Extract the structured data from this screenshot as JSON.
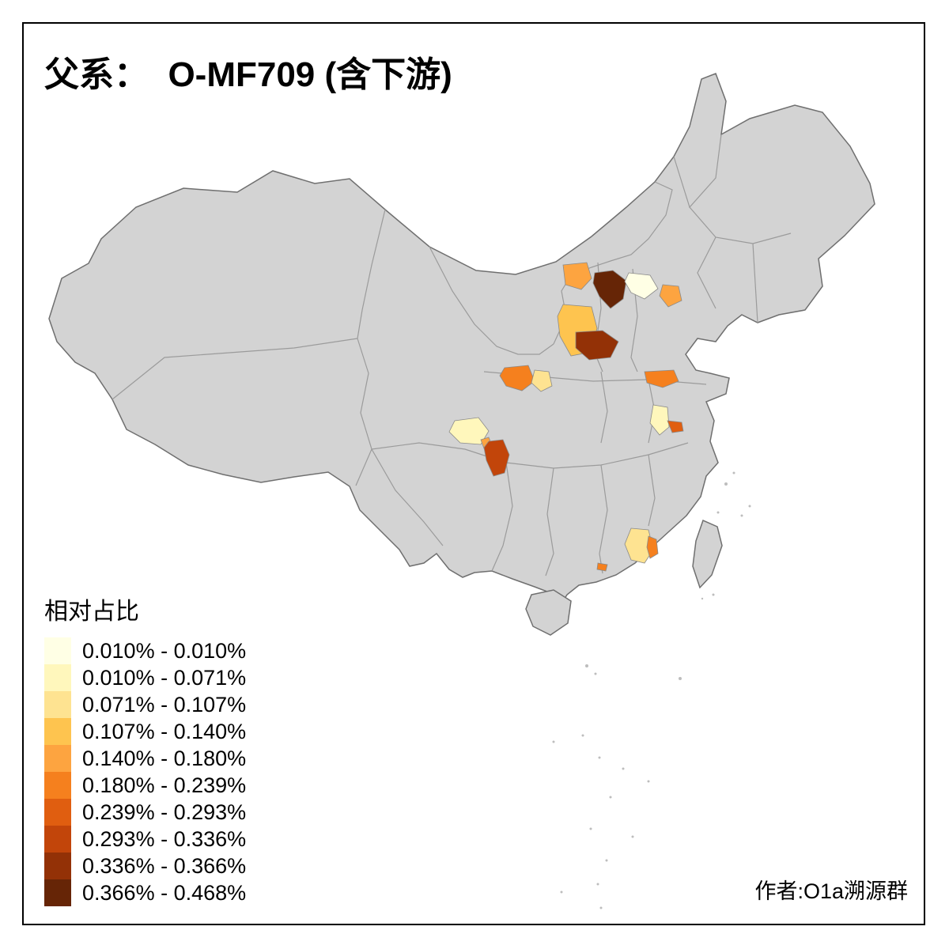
{
  "title": "父系：  O-MF709 (含下游)",
  "credit": "作者:O1a溯源群",
  "legend": {
    "title": "相对占比",
    "classes": [
      {
        "label": "0.010% - 0.010%",
        "color": "#FFFFE5"
      },
      {
        "label": "0.010% - 0.071%",
        "color": "#FFF7BC"
      },
      {
        "label": "0.071% - 0.107%",
        "color": "#FEE391"
      },
      {
        "label": "0.107% - 0.140%",
        "color": "#FEC44F"
      },
      {
        "label": "0.140% - 0.180%",
        "color": "#FDA440"
      },
      {
        "label": "0.180% - 0.239%",
        "color": "#F5801E"
      },
      {
        "label": "0.239% - 0.293%",
        "color": "#E05E10"
      },
      {
        "label": "0.293% - 0.336%",
        "color": "#C2450A"
      },
      {
        "label": "0.336% - 0.366%",
        "color": "#933106"
      },
      {
        "label": "0.366% - 0.468%",
        "color": "#662506"
      }
    ]
  },
  "map": {
    "land_fill": "#D3D3D3",
    "border_color": "#6F6F6F",
    "province_line_color": "#9B9B9B",
    "island_fill": "#BDBDBD",
    "regions": {
      "r01": {
        "name": "northwest-shanxi",
        "class": 4
      },
      "r02": {
        "name": "north-shanxi-dark",
        "class": 9
      },
      "r03": {
        "name": "beijing-pale",
        "class": 0
      },
      "r04": {
        "name": "east-hebei",
        "class": 4
      },
      "r05": {
        "name": "central-shanxi",
        "class": 3
      },
      "r06": {
        "name": "southeast-shanxi-dark",
        "class": 8
      },
      "r07": {
        "name": "east-gansu",
        "class": 5
      },
      "r08": {
        "name": "north-shaanxi-pale",
        "class": 2
      },
      "r09": {
        "name": "west-shandong",
        "class": 5
      },
      "r10": {
        "name": "chengdu-pale",
        "class": 1
      },
      "r11": {
        "name": "chengdu-dot",
        "class": 4
      },
      "r12": {
        "name": "chongqing-dark",
        "class": 7
      },
      "r13": {
        "name": "central-anhui-pale",
        "class": 1
      },
      "r14": {
        "name": "nanjing-orange",
        "class": 6
      },
      "r15": {
        "name": "east-guangdong-pale",
        "class": 2
      },
      "r16": {
        "name": "east-guangdong-sliver",
        "class": 5
      },
      "r17": {
        "name": "pearl-delta-dot",
        "class": 5
      }
    }
  }
}
